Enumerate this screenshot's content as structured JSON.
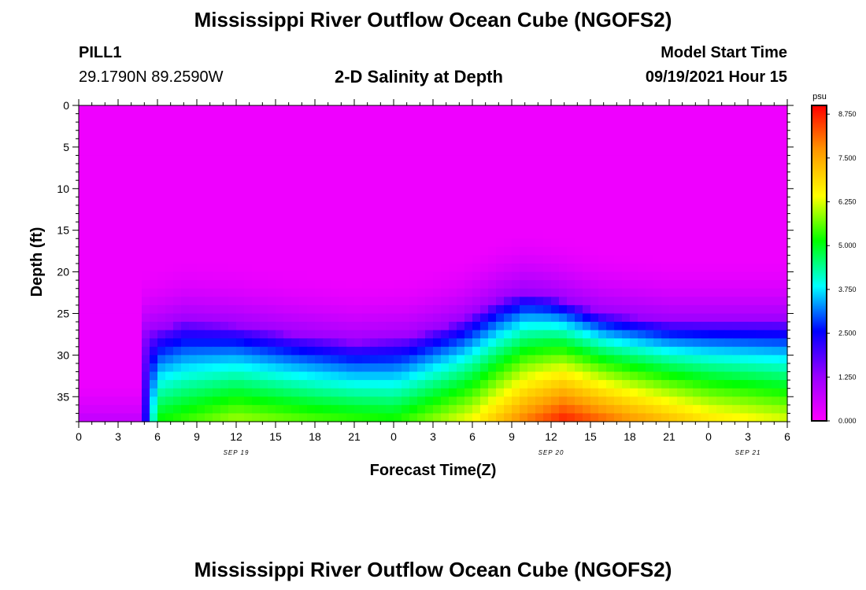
{
  "header": {
    "title": "Mississippi River Outflow Ocean Cube (NGOFS2)",
    "station_id": "PILL1",
    "station_coords": "29.1790N  89.2590W",
    "plot_subtitle": "2-D Salinity at Depth",
    "model_start_label": "Model Start Time",
    "model_start_value": "09/19/2021 Hour 15"
  },
  "footer": {
    "title": "Mississippi River Outflow Ocean Cube (NGOFS2)"
  },
  "chart_data": {
    "type": "heatmap",
    "title": "2-D Salinity at Depth",
    "xlabel": "Forecast Time(Z)",
    "ylabel": "Depth (ft)",
    "x_unit": "hours from 00Z Sep 19",
    "x_range": [
      0,
      54
    ],
    "x_tick_values": [
      0,
      3,
      6,
      9,
      12,
      15,
      18,
      21,
      24,
      27,
      30,
      33,
      36,
      39,
      42,
      45,
      48,
      51,
      54
    ],
    "x_tick_labels": [
      "0",
      "3",
      "6",
      "9",
      "12",
      "15",
      "18",
      "21",
      "0",
      "3",
      "6",
      "9",
      "12",
      "15",
      "18",
      "21",
      "0",
      "3",
      "6"
    ],
    "date_labels": [
      {
        "x": 12,
        "label": "SEP 19"
      },
      {
        "x": 36,
        "label": "SEP 20"
      },
      {
        "x": 51,
        "label": "SEP 21"
      }
    ],
    "y_range": [
      0,
      38
    ],
    "y_inverted": true,
    "y_ticks": [
      0,
      5,
      10,
      15,
      20,
      25,
      30,
      35
    ],
    "colorbar": {
      "unit": "psu",
      "range": [
        0,
        9
      ],
      "tick_values": [
        0,
        1.25,
        2.5,
        3.75,
        5,
        6.25,
        7.5,
        8.75
      ],
      "tick_labels": [
        "0.000",
        "1.250",
        "2.500",
        "3.750",
        "5.000",
        "6.250",
        "7.500",
        "8.750"
      ],
      "colormap": [
        "#ff00ff",
        "#9900ff",
        "#0000ff",
        "#00ffff",
        "#00ff00",
        "#ffff00",
        "#ff9900",
        "#ff0000"
      ]
    },
    "surface_salinity_psu": 0.2,
    "cline_depth_ft": [
      {
        "x": 0,
        "depth": 40
      },
      {
        "x": 4.5,
        "depth": 40
      },
      {
        "x": 5,
        "depth": 27.5
      },
      {
        "x": 8,
        "depth": 26
      },
      {
        "x": 12,
        "depth": 26.5
      },
      {
        "x": 16,
        "depth": 27.5
      },
      {
        "x": 21,
        "depth": 28.5
      },
      {
        "x": 25,
        "depth": 28
      },
      {
        "x": 29,
        "depth": 26
      },
      {
        "x": 32,
        "depth": 23.5
      },
      {
        "x": 34,
        "depth": 22.5
      },
      {
        "x": 36,
        "depth": 23
      },
      {
        "x": 40,
        "depth": 25
      },
      {
        "x": 45,
        "depth": 26
      },
      {
        "x": 54,
        "depth": 26
      }
    ],
    "bottom_salinity_psu": [
      {
        "x": 0,
        "value": 0.2
      },
      {
        "x": 4.5,
        "value": 0.5
      },
      {
        "x": 6,
        "value": 5.2
      },
      {
        "x": 12,
        "value": 6.0
      },
      {
        "x": 18,
        "value": 5.6
      },
      {
        "x": 24,
        "value": 5.3
      },
      {
        "x": 30,
        "value": 6.5
      },
      {
        "x": 34,
        "value": 8.0
      },
      {
        "x": 37,
        "value": 8.8
      },
      {
        "x": 42,
        "value": 7.8
      },
      {
        "x": 48,
        "value": 6.8
      },
      {
        "x": 54,
        "value": 6.3
      }
    ]
  }
}
